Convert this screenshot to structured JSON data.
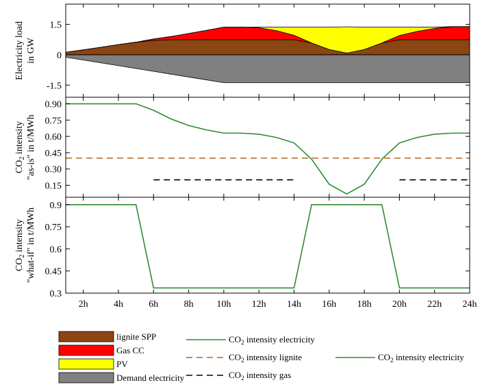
{
  "colors": {
    "lignite": "#8B4513",
    "gas": "#FF0000",
    "pv": "#FFFF00",
    "demand": "#808080",
    "co2_line": "#2E8B2E",
    "lignite_dash": "#B5651D",
    "gas_dash": "#000000"
  },
  "chart_data": [
    {
      "type": "area",
      "ylabel": [
        "Electricity load",
        "in GW"
      ],
      "ylim": [
        -2.1,
        2.5
      ],
      "yticks": [
        1.5,
        0,
        -1.5
      ],
      "ytick_labels": [
        "1.5",
        "0",
        "-1.5"
      ],
      "x": [
        1,
        2,
        3,
        4,
        5,
        6,
        7,
        8,
        9,
        10,
        11,
        12,
        13,
        14,
        15,
        16,
        17,
        18,
        19,
        20,
        21,
        22,
        23,
        24
      ],
      "series": [
        {
          "name": "lignite SPP",
          "values": [
            0.12,
            0.24,
            0.37,
            0.5,
            0.62,
            0.71,
            0.74,
            0.74,
            0.74,
            0.74,
            0.74,
            0.74,
            0.74,
            0.74,
            0.58,
            0.26,
            0.08,
            0.26,
            0.58,
            0.74,
            0.74,
            0.74,
            0.74,
            0.74
          ]
        },
        {
          "name": "Gas CC",
          "values": [
            0,
            0,
            0,
            0,
            0,
            0.07,
            0.16,
            0.31,
            0.46,
            0.62,
            0.62,
            0.59,
            0.45,
            0.22,
            0,
            0,
            0,
            0,
            0,
            0.21,
            0.41,
            0.56,
            0.64,
            0.65
          ]
        },
        {
          "name": "PV",
          "values": [
            0,
            0,
            0,
            0,
            0,
            0,
            0,
            0,
            0,
            0,
            0,
            0.03,
            0.17,
            0.4,
            0.78,
            1.1,
            1.3,
            1.1,
            0.78,
            0.41,
            0.21,
            0.06,
            0.01,
            0
          ]
        },
        {
          "name": "Demand electricity",
          "values": [
            -0.12,
            -0.26,
            -0.4,
            -0.54,
            -0.68,
            -0.82,
            -0.96,
            -1.1,
            -1.24,
            -1.38,
            -1.38,
            -1.38,
            -1.38,
            -1.38,
            -1.38,
            -1.38,
            -1.38,
            -1.38,
            -1.38,
            -1.38,
            -1.38,
            -1.38,
            -1.38,
            -1.38
          ]
        }
      ]
    },
    {
      "type": "line",
      "ylabel": [
        "CO2 intensity",
        "\"as-is\" in t/MWh"
      ],
      "ylim": [
        0.04,
        0.96
      ],
      "yticks": [
        0.9,
        0.75,
        0.6,
        0.45,
        0.3,
        0.15
      ],
      "ytick_labels": [
        "0.90",
        "0.75",
        "0.60",
        "0.45",
        "0.30",
        "0.15"
      ],
      "x": [
        1,
        2,
        3,
        4,
        5,
        6,
        7,
        8,
        9,
        10,
        11,
        12,
        13,
        14,
        15,
        16,
        17,
        18,
        19,
        20,
        21,
        22,
        23,
        24
      ],
      "series": [
        {
          "name": "CO2 intensity electricity",
          "values": [
            0.9,
            0.9,
            0.9,
            0.9,
            0.9,
            0.84,
            0.76,
            0.7,
            0.66,
            0.63,
            0.63,
            0.62,
            0.59,
            0.54,
            0.39,
            0.16,
            0.07,
            0.16,
            0.39,
            0.54,
            0.59,
            0.62,
            0.63,
            0.63
          ]
        },
        {
          "name": "CO2 intensity lignite",
          "x": [
            1,
            24
          ],
          "values": [
            0.4,
            0.4
          ]
        },
        {
          "name": "CO2 intensity gas",
          "segments": [
            {
              "x": [
                6,
                14
              ],
              "values": [
                0.2,
                0.2
              ]
            },
            {
              "x": [
                20,
                24
              ],
              "values": [
                0.2,
                0.2
              ]
            }
          ]
        }
      ]
    },
    {
      "type": "line",
      "ylabel": [
        "CO2 intensity",
        "\"what-if\" in t/MWh"
      ],
      "ylim": [
        0.3,
        0.95
      ],
      "yticks": [
        0.9,
        0.75,
        0.6,
        0.45,
        0.3
      ],
      "ytick_labels": [
        "0.9",
        "0.75",
        "0.6",
        "0.45",
        "0.3"
      ],
      "xticks": [
        2,
        4,
        6,
        8,
        10,
        12,
        14,
        16,
        18,
        20,
        22,
        24
      ],
      "xtick_labels": [
        "2h",
        "4h",
        "6h",
        "8h",
        "10h",
        "12h",
        "14h",
        "16h",
        "18h",
        "20h",
        "22h",
        "24h"
      ],
      "x": [
        1,
        2,
        3,
        4,
        5,
        6,
        7,
        8,
        9,
        10,
        11,
        12,
        13,
        14,
        15,
        16,
        17,
        18,
        19,
        20,
        21,
        22,
        23,
        24
      ],
      "series": [
        {
          "name": "CO2 intensity electricity",
          "values": [
            0.9,
            0.9,
            0.9,
            0.9,
            0.9,
            0.335,
            0.335,
            0.335,
            0.335,
            0.335,
            0.335,
            0.335,
            0.335,
            0.335,
            0.9,
            0.9,
            0.9,
            0.9,
            0.9,
            0.335,
            0.335,
            0.335,
            0.335,
            0.335
          ]
        }
      ]
    }
  ],
  "legend": {
    "patches": [
      "lignite SPP",
      "Gas CC",
      "PV",
      "Demand electricity"
    ],
    "lines_mid": [
      {
        "prefix": "CO",
        "sub": "2",
        "suffix": " intensity electricity"
      },
      {
        "prefix": "CO",
        "sub": "2",
        "suffix": " intensity lignite"
      },
      {
        "prefix": "CO",
        "sub": "2",
        "suffix": " intensity gas"
      }
    ],
    "lines_right": [
      {
        "prefix": "CO",
        "sub": "2",
        "suffix": " intensity electricity"
      }
    ]
  }
}
